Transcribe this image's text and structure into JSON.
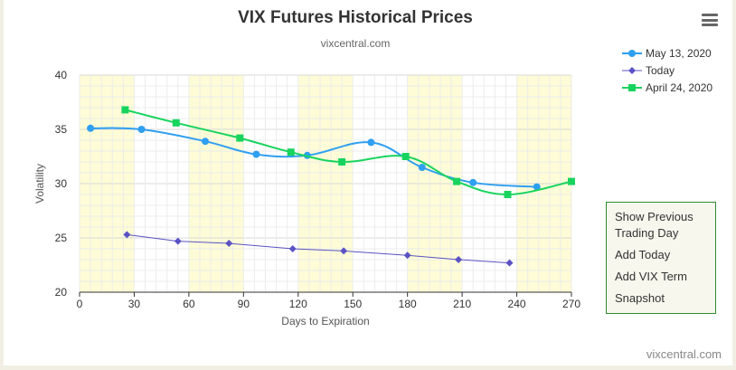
{
  "title": "VIX Futures Historical Prices",
  "subtitle": "vixcentral.com",
  "credits": "vixcentral.com",
  "colors": {
    "may13": "#2f9ff0",
    "today": "#5a52c4",
    "apr24": "#18d45e",
    "band": "#fdfcd6",
    "menu_border": "#2e8b2e"
  },
  "context_menu": {
    "items": [
      "Show Previous Trading Day",
      "Add Today",
      "Add VIX Term",
      "Snapshot"
    ]
  },
  "chart_data": {
    "type": "line",
    "title": "VIX Futures Historical Prices",
    "subtitle": "vixcentral.com",
    "xlabel": "Days to Expiration",
    "ylabel": "Volatility",
    "xlim": [
      0,
      270
    ],
    "ylim": [
      20,
      40
    ],
    "x_ticks": [
      0,
      30,
      60,
      90,
      120,
      150,
      180,
      210,
      240,
      270
    ],
    "y_ticks": [
      20,
      25,
      30,
      35,
      40
    ],
    "band_ranges": [
      [
        0,
        30
      ],
      [
        60,
        90
      ],
      [
        120,
        150
      ],
      [
        180,
        210
      ],
      [
        240,
        270
      ]
    ],
    "grid": true,
    "legend_position": "top-right",
    "series": [
      {
        "name": "May 13, 2020",
        "color": "#2f9ff0",
        "marker": "circle",
        "smooth": true,
        "x": [
          6,
          34,
          69,
          97,
          125,
          160,
          188,
          216,
          251
        ],
        "y": [
          35.1,
          35.0,
          33.9,
          32.7,
          32.6,
          33.8,
          31.5,
          30.1,
          29.7
        ]
      },
      {
        "name": "Today",
        "color": "#5a52c4",
        "marker": "diamond",
        "smooth": false,
        "x": [
          26,
          54,
          82,
          117,
          145,
          180,
          208,
          236
        ],
        "y": [
          25.3,
          24.7,
          24.5,
          24.0,
          23.8,
          23.4,
          23.0,
          22.7
        ]
      },
      {
        "name": "April 24, 2020",
        "color": "#18d45e",
        "marker": "square",
        "smooth": true,
        "x": [
          25,
          53,
          88,
          116,
          144,
          179,
          207,
          235,
          270
        ],
        "y": [
          36.8,
          35.6,
          34.2,
          32.9,
          32.0,
          32.5,
          30.2,
          29.0,
          30.2
        ]
      }
    ]
  }
}
